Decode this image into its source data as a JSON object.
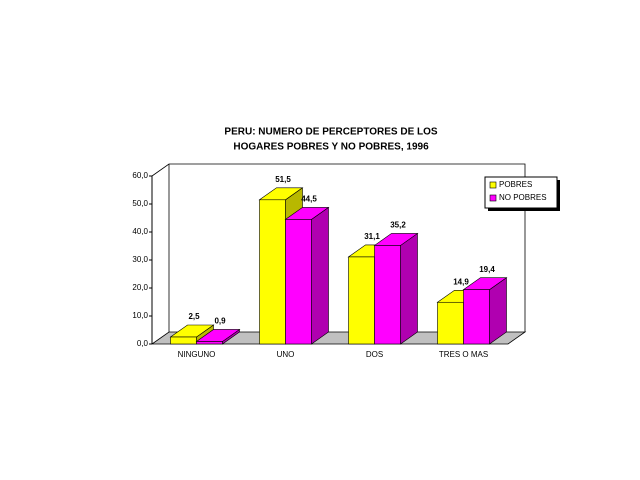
{
  "chart_data": {
    "type": "bar3d",
    "title": [
      "PERU: NUMERO DE PERCEPTORES DE LOS",
      "HOGARES POBRES Y NO POBRES, 1996"
    ],
    "categories": [
      "NINGUNO",
      "UNO",
      "DOS",
      "TRES O MAS"
    ],
    "series": [
      {
        "name": "POBRES",
        "color": "#ffff00",
        "side_color": "#b8b800",
        "values": [
          2.5,
          51.5,
          31.1,
          14.9
        ],
        "value_labels": [
          "2,5",
          "51,5",
          "31,1",
          "14,9"
        ]
      },
      {
        "name": "NO POBRES",
        "color": "#ff00ff",
        "side_color": "#b000b0",
        "values": [
          0.9,
          44.5,
          35.2,
          19.4
        ],
        "value_labels": [
          "0,9",
          "44,5",
          "35,2",
          "19,4"
        ]
      }
    ],
    "ylim": [
      0,
      60
    ],
    "yticks": [
      {
        "value": 0,
        "label": "0,0"
      },
      {
        "value": 10,
        "label": "10,0"
      },
      {
        "value": 20,
        "label": "20,0"
      },
      {
        "value": 30,
        "label": "30,0"
      },
      {
        "value": 40,
        "label": "40,0"
      },
      {
        "value": 50,
        "label": "50,0"
      },
      {
        "value": 60,
        "label": "60,0"
      }
    ],
    "grid": false,
    "legend": "top-right"
  }
}
